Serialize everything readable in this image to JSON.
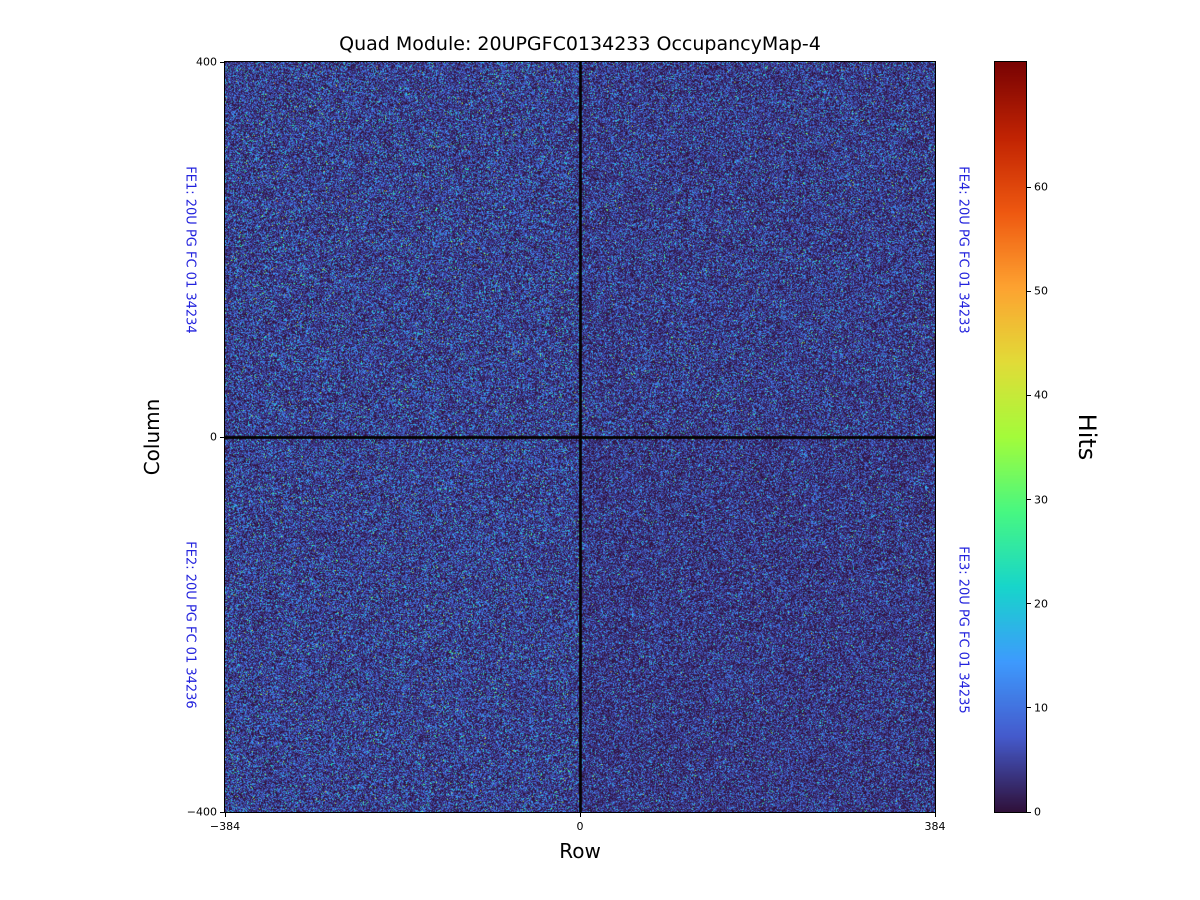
{
  "chart_data": {
    "type": "heatmap",
    "title": "Quad Module: 20UPGFC0134233 OccupancyMap-4",
    "xlabel": "Row",
    "ylabel": "Column",
    "x_range": [
      -384,
      384
    ],
    "y_range": [
      -400,
      400
    ],
    "x_ticks": [
      {
        "value": -384,
        "label": "−384"
      },
      {
        "value": 0,
        "label": "0"
      },
      {
        "value": 384,
        "label": "384"
      }
    ],
    "y_ticks": [
      {
        "value": 400,
        "label": "400"
      },
      {
        "value": 0,
        "label": "0"
      },
      {
        "value": -400,
        "label": "−400"
      }
    ],
    "grid": false,
    "colormap": "turbo",
    "colorbar": {
      "label": "Hits",
      "min": 0,
      "max": 72,
      "ticks": [
        0,
        10,
        20,
        30,
        40,
        50,
        60
      ],
      "position": "right"
    },
    "cells": {
      "nx": 768,
      "ny": 800
    },
    "seed": 134233,
    "noise": "random pixel-occupancy speckle; most pixels 0-10 hits (dark purple/blue), sparse hot pixels up to colorbar max (cyan/green/yellow/red); black cross at row 0 and column 0 marking front-end chip boundaries",
    "quadrants": [
      {
        "name": "FE1",
        "position": "top-left",
        "label": "FE1: 20U PG FC 01 34234",
        "mean_hits": 6.0
      },
      {
        "name": "FE2",
        "position": "bottom-left",
        "label": "FE2: 20U PG FC 01 34236",
        "mean_hits": 6.0
      },
      {
        "name": "FE3",
        "position": "bottom-right",
        "label": "FE3: 20U PG FC 01 34235",
        "mean_hits": 5.0
      },
      {
        "name": "FE4",
        "position": "top-right",
        "label": "FE4: 20U PG FC 01 34233",
        "mean_hits": 5.5
      }
    ]
  },
  "colors": {
    "fe_label": "#2222dd",
    "axis_text": "#000000",
    "background": "#ffffff"
  }
}
